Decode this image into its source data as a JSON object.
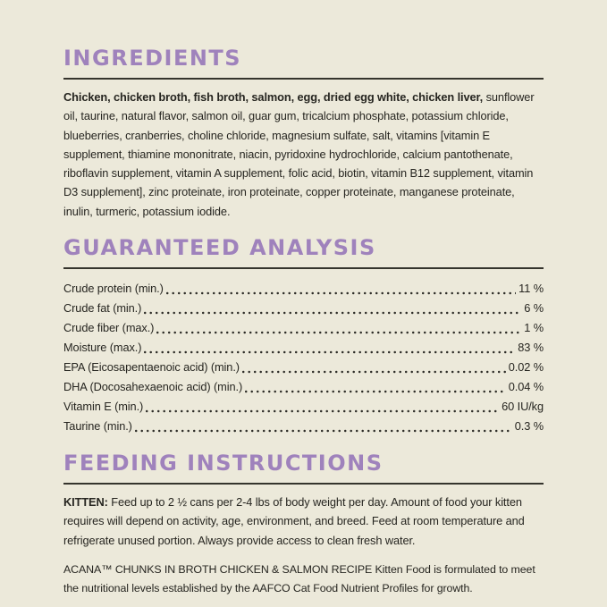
{
  "page": {
    "background_color": "#ECE9DA",
    "accent_color": "#9F82BC",
    "text_color": "#262520",
    "rule_color": "#35342D"
  },
  "ingredients": {
    "title": "INGREDIENTS",
    "bold_lead": "Chicken, chicken broth, fish broth, salmon, egg, dried egg white, chicken liver,",
    "rest": " sunflower oil, taurine, natural flavor, salmon oil, guar gum, tricalcium phosphate, potassium chloride, blueberries, cranberries, choline chloride, magnesium sulfate, salt, vitamins [vitamin E supplement, thiamine mononitrate, niacin, pyridoxine hydrochloride, calcium pantothenate, riboflavin supplement, vitamin A supplement, folic acid, biotin, vitamin B12 supplement, vitamin D3 supplement], zinc proteinate, iron proteinate, copper proteinate, manganese proteinate, inulin, turmeric, potassium iodide."
  },
  "guaranteed_analysis": {
    "title": "GUARANTEED ANALYSIS",
    "rows": [
      {
        "label": "Crude protein (min.)",
        "value": "11 %"
      },
      {
        "label": "Crude fat (min.)",
        "value": "6 %"
      },
      {
        "label": "Crude fiber (max.)",
        "value": "1 %"
      },
      {
        "label": "Moisture (max.)",
        "value": "83 %"
      },
      {
        "label": "EPA (Eicosapentaenoic acid) (min.)",
        "value": "0.02 %"
      },
      {
        "label": "DHA (Docosahexaenoic acid) (min.)",
        "value": "0.04 %"
      },
      {
        "label": "Vitamin E (min.)",
        "value": "60 IU/kg"
      },
      {
        "label": "Taurine (min.)",
        "value": "0.3 %"
      }
    ]
  },
  "feeding_instructions": {
    "title": "FEEDING INSTRUCTIONS",
    "kitten_label": "KITTEN:",
    "kitten_text": " Feed up to 2 ½ cans per 2-4 lbs of body weight per day. Amount of food your kitten requires will depend on activity, age, environment, and breed. Feed at room temperature and refrigerate unused portion. Always provide access to clean fresh water.",
    "aafco_text": "ACANA™ CHUNKS IN BROTH CHICKEN & SALMON RECIPE Kitten Food is formulated to meet the nutritional levels established by the AAFCO Cat Food Nutrient Profiles for growth."
  }
}
